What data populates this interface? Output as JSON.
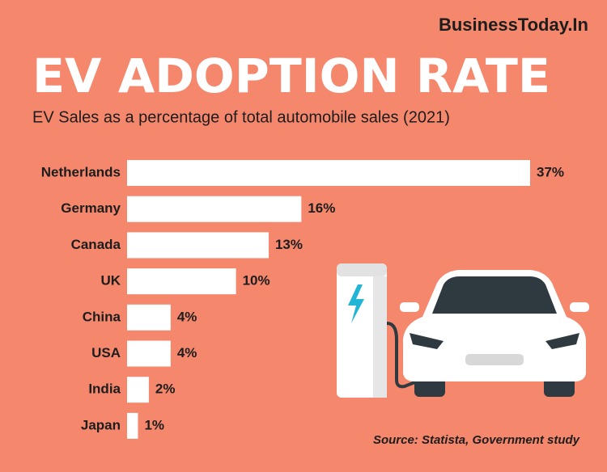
{
  "chart_data": {
    "type": "bar",
    "orientation": "horizontal",
    "brand": "BusinessToday.In",
    "title": "EV ADOPTION RATE",
    "subtitle": "EV Sales as a percentage of total automobile sales (2021)",
    "categories": [
      "Netherlands",
      "Germany",
      "Canada",
      "UK",
      "China",
      "USA",
      "India",
      "Japan"
    ],
    "values": [
      37,
      16,
      13,
      10,
      4,
      4,
      2,
      1
    ],
    "value_labels": [
      "37%",
      "16%",
      "13%",
      "10%",
      "4%",
      "4%",
      "2%",
      "1%"
    ],
    "color": "#ffffff",
    "source": "Source: Statista, Government study"
  }
}
